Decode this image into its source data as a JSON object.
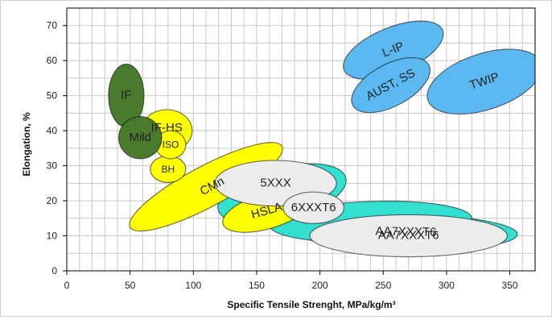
{
  "chart_data": {
    "type": "scatter",
    "title": "",
    "xlabel": "Specific Tensile Strenght, MPa/kg/m³",
    "ylabel": "Elongation, %",
    "xlim": [
      0,
      370
    ],
    "ylim": [
      0,
      75
    ],
    "xticks": [
      0,
      50,
      100,
      150,
      200,
      250,
      300,
      350
    ],
    "yticks": [
      0,
      10,
      20,
      30,
      40,
      50,
      60,
      70
    ],
    "grid": true,
    "legend": "none",
    "regions": [
      {
        "label": "AA7XXXT6",
        "cx": 268,
        "cy": 11,
        "rx_units": 88,
        "ry_units": 5.2,
        "rot": -1,
        "fill": "#33e0d0",
        "text_color": "#1f2b6e",
        "label_dx": 0,
        "label_dy": 0
      },
      {
        "label": "",
        "cx": 170,
        "cy": 22,
        "rx_units": 52,
        "ry_units": 7.5,
        "rot": 14,
        "fill": "#33e0d0",
        "text_color": "#1f2b6e",
        "label_dx": 0,
        "label_dy": 0
      },
      {
        "label": "",
        "cx": 240,
        "cy": 14,
        "rx_units": 80,
        "ry_units": 5.8,
        "rot": 2,
        "fill": "#33e0d0",
        "text_color": "#1f2b6e",
        "label_dx": 0,
        "label_dy": 0
      },
      {
        "label": "TWIP",
        "cx": 330,
        "cy": 54,
        "rx_units": 47,
        "ry_units": 8,
        "rot": 18,
        "fill": "#5bb8f0",
        "text_color": "#222",
        "label_dx": 0,
        "label_dy": 0
      },
      {
        "label": "L-IP",
        "cx": 258,
        "cy": 63,
        "rx_units": 42,
        "ry_units": 6.5,
        "rot": 22,
        "fill": "#5bb8f0",
        "text_color": "#222",
        "label_dx": 0,
        "label_dy": 0
      },
      {
        "label": "AUST, SS",
        "cx": 256,
        "cy": 53,
        "rx_units": 34,
        "ry_units": 6,
        "rot": 28,
        "fill": "#5bb8f0",
        "text_color": "#222",
        "label_dx": 0,
        "label_dy": 0
      },
      {
        "label": "CMn",
        "cx": 110,
        "cy": 24,
        "rx_units": 68,
        "ry_units": 5.8,
        "rot": 28,
        "fill": "#ffff00",
        "text_color": "#222",
        "label_dx": 8,
        "label_dy": 0
      },
      {
        "label": "HSLA",
        "cx": 158,
        "cy": 17,
        "rx_units": 36,
        "ry_units": 5,
        "rot": 16,
        "fill": "#ffff00",
        "text_color": "#222",
        "label_dx": 0,
        "label_dy": 0
      },
      {
        "label": "BH",
        "cx": 80,
        "cy": 29,
        "rx_units": 14,
        "ry_units": 3.8,
        "rot": 0,
        "fill": "#ffff00",
        "text_color": "#222",
        "label_dx": 0,
        "label_dy": 0
      },
      {
        "label": "IF-HS",
        "cx": 79,
        "cy": 40,
        "rx_units": 20,
        "ry_units": 6,
        "rot": 0,
        "fill": "#ffff00",
        "text_color": "#222",
        "label_dx": 0,
        "label_dy": -3
      },
      {
        "label": "ISO",
        "cx": 82,
        "cy": 36,
        "rx_units": 12,
        "ry_units": 4,
        "rot": 0,
        "fill": "#ffff00",
        "text_color": "#222",
        "label_dx": 0,
        "label_dy": 0
      },
      {
        "label": "IF",
        "cx": 47,
        "cy": 50,
        "rx_units": 14,
        "ry_units": 9,
        "rot": 0,
        "fill": "#4a7a2e",
        "text_color": "#ffffff",
        "label_dx": 0,
        "label_dy": 0
      },
      {
        "label": "Mild",
        "cx": 58,
        "cy": 38,
        "rx_units": 17,
        "ry_units": 6,
        "rot": 0,
        "fill": "#4a7a2e",
        "text_color": "#ffffff",
        "label_dx": 0,
        "label_dy": 0
      },
      {
        "label": "5XXX",
        "cx": 165,
        "cy": 25,
        "rx_units": 48,
        "ry_units": 6.5,
        "rot": 0,
        "fill": "#ececef",
        "text_color": "#1f2b6e",
        "label_dx": 0,
        "label_dy": 0
      },
      {
        "label": "6XXXT6",
        "cx": 195,
        "cy": 18,
        "rx_units": 24,
        "ry_units": 4.5,
        "rot": 0,
        "fill": "#ececef",
        "text_color": "#1f2b6e",
        "label_dx": 0,
        "label_dy": 0
      },
      {
        "label": "AA7XXXT6",
        "cx": 270,
        "cy": 10,
        "rx_units": 78,
        "ry_units": 6,
        "rot": 0,
        "fill": "#ececef",
        "text_color": "#1f2b6e",
        "label_dx": 0,
        "label_dy": 0
      }
    ]
  }
}
